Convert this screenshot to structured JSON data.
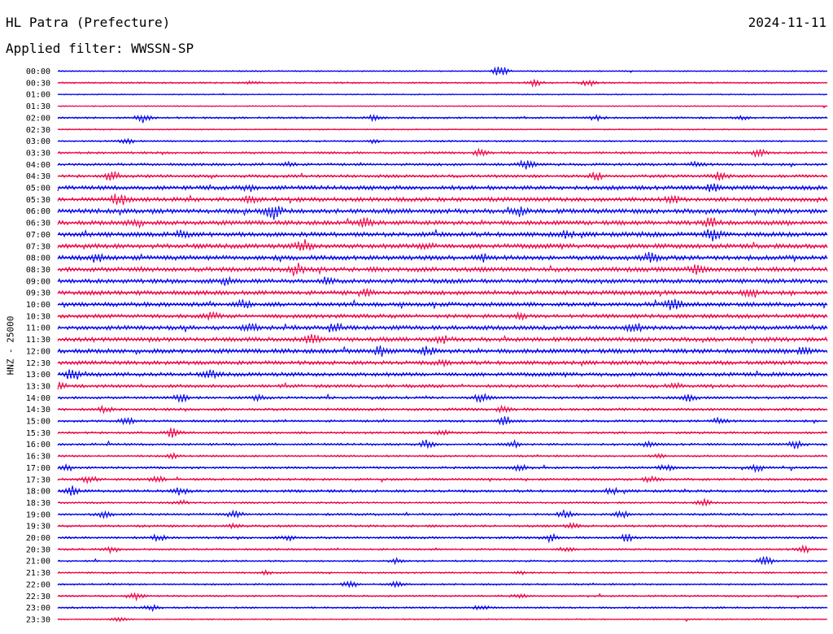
{
  "header": {
    "station": "HL Patra (Prefecture)",
    "date": "2024-11-11",
    "filter": "Applied filter: WWSSN-SP"
  },
  "chart_data": {
    "type": "line",
    "ylabel": "HNZ - 25000",
    "title": "",
    "xlabel": "",
    "colors": [
      "#0000ee",
      "#ee0044"
    ],
    "traces": [
      {
        "label": "00:00",
        "activity": 0.05,
        "bursts": [
          [
            0.575,
            1.0
          ]
        ]
      },
      {
        "label": "00:30",
        "activity": 0.1,
        "bursts": [
          [
            0.62,
            0.6
          ],
          [
            0.69,
            0.5
          ],
          [
            0.25,
            0.25
          ]
        ]
      },
      {
        "label": "01:00",
        "activity": 0.03,
        "bursts": []
      },
      {
        "label": "01:30",
        "activity": 0.03,
        "bursts": []
      },
      {
        "label": "02:00",
        "activity": 0.15,
        "bursts": [
          [
            0.11,
            0.8
          ],
          [
            0.41,
            0.4
          ],
          [
            0.7,
            0.4
          ],
          [
            0.89,
            0.3
          ]
        ]
      },
      {
        "label": "02:30",
        "activity": 0.03,
        "bursts": []
      },
      {
        "label": "03:00",
        "activity": 0.1,
        "bursts": [
          [
            0.09,
            0.4
          ],
          [
            0.41,
            0.3
          ]
        ]
      },
      {
        "label": "03:30",
        "activity": 0.2,
        "bursts": [
          [
            0.55,
            0.6
          ],
          [
            0.91,
            0.6
          ]
        ]
      },
      {
        "label": "04:00",
        "activity": 0.25,
        "bursts": [
          [
            0.3,
            0.4
          ],
          [
            0.61,
            0.9
          ],
          [
            0.83,
            0.4
          ]
        ]
      },
      {
        "label": "04:30",
        "activity": 0.3,
        "bursts": [
          [
            0.07,
            0.8
          ],
          [
            0.7,
            0.6
          ],
          [
            0.86,
            0.8
          ]
        ]
      },
      {
        "label": "05:00",
        "activity": 0.5,
        "bursts": [
          [
            0.25,
            0.5
          ],
          [
            0.85,
            0.5
          ]
        ]
      },
      {
        "label": "05:30",
        "activity": 0.5,
        "bursts": [
          [
            0.08,
            1.0
          ],
          [
            0.25,
            0.6
          ],
          [
            0.8,
            0.6
          ]
        ]
      },
      {
        "label": "06:00",
        "activity": 0.55,
        "bursts": [
          [
            0.28,
            1.4
          ],
          [
            0.6,
            0.7
          ]
        ]
      },
      {
        "label": "06:30",
        "activity": 0.5,
        "bursts": [
          [
            0.1,
            0.6
          ],
          [
            0.4,
            0.8
          ],
          [
            0.85,
            0.8
          ]
        ]
      },
      {
        "label": "07:00",
        "activity": 0.55,
        "bursts": [
          [
            0.16,
            0.5
          ],
          [
            0.66,
            0.5
          ],
          [
            0.85,
            1.0
          ]
        ]
      },
      {
        "label": "07:30",
        "activity": 0.55,
        "bursts": [
          [
            0.32,
            1.0
          ],
          [
            0.48,
            0.6
          ]
        ]
      },
      {
        "label": "08:00",
        "activity": 0.55,
        "bursts": [
          [
            0.05,
            0.6
          ],
          [
            0.55,
            0.6
          ],
          [
            0.77,
            0.7
          ]
        ]
      },
      {
        "label": "08:30",
        "activity": 0.55,
        "bursts": [
          [
            0.31,
            1.0
          ],
          [
            0.83,
            0.7
          ]
        ]
      },
      {
        "label": "09:00",
        "activity": 0.5,
        "bursts": [
          [
            0.22,
            0.8
          ],
          [
            0.35,
            0.5
          ]
        ]
      },
      {
        "label": "09:30",
        "activity": 0.5,
        "bursts": [
          [
            0.4,
            0.6
          ],
          [
            0.9,
            0.9
          ]
        ]
      },
      {
        "label": "10:00",
        "activity": 0.5,
        "bursts": [
          [
            0.24,
            0.6
          ],
          [
            0.8,
            1.0
          ]
        ]
      },
      {
        "label": "10:30",
        "activity": 0.45,
        "bursts": [
          [
            0.2,
            0.5
          ],
          [
            0.6,
            0.4
          ]
        ]
      },
      {
        "label": "11:00",
        "activity": 0.5,
        "bursts": [
          [
            0.25,
            0.7
          ],
          [
            0.36,
            0.8
          ],
          [
            0.75,
            0.8
          ]
        ]
      },
      {
        "label": "11:30",
        "activity": 0.5,
        "bursts": [
          [
            0.33,
            0.9
          ],
          [
            0.5,
            0.5
          ]
        ]
      },
      {
        "label": "12:00",
        "activity": 0.5,
        "bursts": [
          [
            0.42,
            0.8
          ],
          [
            0.48,
            0.6
          ],
          [
            0.97,
            0.7
          ]
        ]
      },
      {
        "label": "12:30",
        "activity": 0.45,
        "bursts": [
          [
            0.5,
            0.4
          ]
        ]
      },
      {
        "label": "13:00",
        "activity": 0.45,
        "bursts": [
          [
            0.02,
            1.0
          ],
          [
            0.2,
            0.6
          ]
        ]
      },
      {
        "label": "13:30",
        "activity": 0.35,
        "bursts": [
          [
            0.0,
            0.7
          ],
          [
            0.8,
            0.5
          ]
        ]
      },
      {
        "label": "14:00",
        "activity": 0.25,
        "bursts": [
          [
            0.16,
            0.6
          ],
          [
            0.26,
            0.5
          ],
          [
            0.55,
            0.7
          ],
          [
            0.82,
            0.6
          ]
        ]
      },
      {
        "label": "14:30",
        "activity": 0.25,
        "bursts": [
          [
            0.06,
            0.5
          ],
          [
            0.58,
            0.5
          ]
        ]
      },
      {
        "label": "15:00",
        "activity": 0.2,
        "bursts": [
          [
            0.09,
            0.6
          ],
          [
            0.58,
            0.9
          ],
          [
            0.86,
            0.5
          ]
        ]
      },
      {
        "label": "15:30",
        "activity": 0.2,
        "bursts": [
          [
            0.15,
            0.8
          ],
          [
            0.5,
            0.4
          ]
        ]
      },
      {
        "label": "16:00",
        "activity": 0.2,
        "bursts": [
          [
            0.48,
            0.7
          ],
          [
            0.59,
            0.6
          ],
          [
            0.77,
            0.5
          ],
          [
            0.96,
            0.7
          ]
        ]
      },
      {
        "label": "16:30",
        "activity": 0.15,
        "bursts": [
          [
            0.15,
            0.4
          ],
          [
            0.78,
            0.3
          ]
        ]
      },
      {
        "label": "17:00",
        "activity": 0.2,
        "bursts": [
          [
            0.01,
            0.6
          ],
          [
            0.6,
            0.6
          ],
          [
            0.79,
            0.5
          ],
          [
            0.91,
            0.6
          ]
        ]
      },
      {
        "label": "17:30",
        "activity": 0.2,
        "bursts": [
          [
            0.04,
            0.7
          ],
          [
            0.13,
            0.5
          ],
          [
            0.77,
            0.4
          ]
        ]
      },
      {
        "label": "18:00",
        "activity": 0.25,
        "bursts": [
          [
            0.02,
            0.8
          ],
          [
            0.16,
            0.7
          ],
          [
            0.72,
            0.5
          ]
        ]
      },
      {
        "label": "18:30",
        "activity": 0.15,
        "bursts": [
          [
            0.16,
            0.4
          ],
          [
            0.84,
            0.6
          ]
        ]
      },
      {
        "label": "19:00",
        "activity": 0.2,
        "bursts": [
          [
            0.06,
            0.6
          ],
          [
            0.23,
            0.6
          ],
          [
            0.66,
            0.7
          ],
          [
            0.73,
            0.8
          ]
        ]
      },
      {
        "label": "19:30",
        "activity": 0.2,
        "bursts": [
          [
            0.23,
            0.4
          ],
          [
            0.67,
            0.5
          ]
        ]
      },
      {
        "label": "20:00",
        "activity": 0.2,
        "bursts": [
          [
            0.13,
            0.5
          ],
          [
            0.3,
            0.5
          ],
          [
            0.64,
            0.6
          ],
          [
            0.74,
            0.7
          ]
        ]
      },
      {
        "label": "20:30",
        "activity": 0.15,
        "bursts": [
          [
            0.07,
            0.5
          ],
          [
            0.66,
            0.4
          ],
          [
            0.97,
            0.6
          ]
        ]
      },
      {
        "label": "21:00",
        "activity": 0.12,
        "bursts": [
          [
            0.44,
            0.4
          ],
          [
            0.92,
            0.9
          ]
        ]
      },
      {
        "label": "21:30",
        "activity": 0.12,
        "bursts": [
          [
            0.27,
            0.3
          ],
          [
            0.6,
            0.3
          ]
        ]
      },
      {
        "label": "22:00",
        "activity": 0.12,
        "bursts": [
          [
            0.38,
            0.6
          ],
          [
            0.44,
            0.4
          ]
        ]
      },
      {
        "label": "22:30",
        "activity": 0.12,
        "bursts": [
          [
            0.1,
            0.7
          ],
          [
            0.6,
            0.3
          ]
        ]
      },
      {
        "label": "23:00",
        "activity": 0.12,
        "bursts": [
          [
            0.12,
            0.5
          ],
          [
            0.55,
            0.4
          ]
        ]
      },
      {
        "label": "23:30",
        "activity": 0.06,
        "bursts": [
          [
            0.08,
            0.3
          ]
        ]
      }
    ]
  }
}
